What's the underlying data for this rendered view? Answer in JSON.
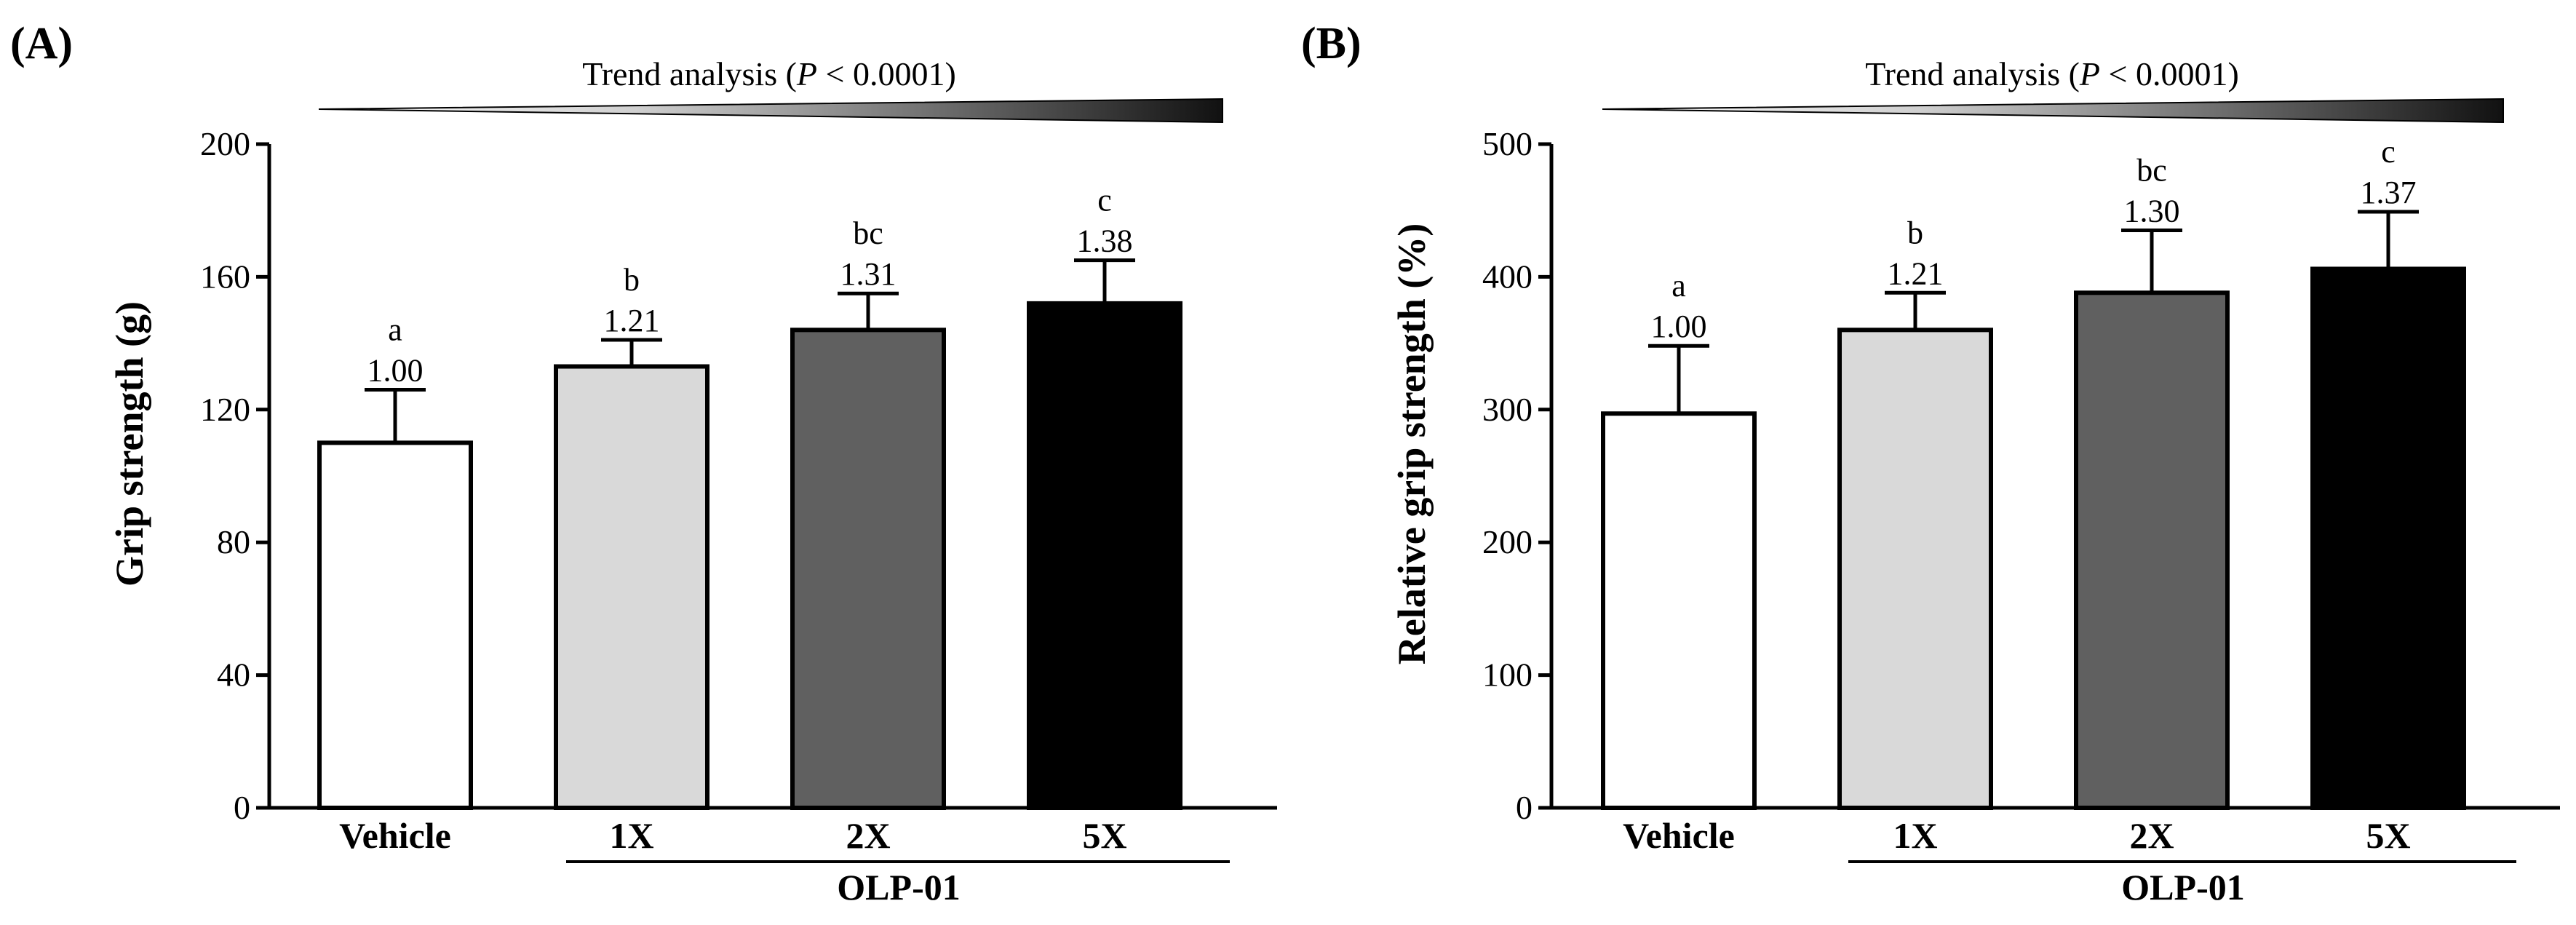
{
  "chart_data": [
    {
      "type": "bar",
      "panel_label": "(A)",
      "trend_prefix": "Trend analysis (",
      "trend_p": "P",
      "trend_suffix": " < 0.0001)",
      "ylabel": "Grip strength (g)",
      "xlabel": "",
      "ylim": [
        0,
        200
      ],
      "yticks": [
        "0",
        "40",
        "80",
        "120",
        "160",
        "200"
      ],
      "categories": [
        "Vehicle",
        "1X",
        "2X",
        "5X"
      ],
      "values": [
        110,
        133,
        144,
        152
      ],
      "errors": [
        16,
        8,
        11,
        13
      ],
      "fill_colors": [
        "#ffffff",
        "#d9d9d9",
        "#606060",
        "#000000"
      ],
      "significance_letters": [
        "a",
        "b",
        "bc",
        "c"
      ],
      "fold_change": [
        "1.00",
        "1.21",
        "1.31",
        "1.38"
      ],
      "group_label": "OLP-01"
    },
    {
      "type": "bar",
      "panel_label": "(B)",
      "trend_prefix": "Trend analysis (",
      "trend_p": "P",
      "trend_suffix": " < 0.0001)",
      "ylabel": "Relative grip strength (%)",
      "xlabel": "",
      "ylim": [
        0,
        500
      ],
      "yticks": [
        "0",
        "100",
        "200",
        "300",
        "400",
        "500"
      ],
      "categories": [
        "Vehicle",
        "1X",
        "2X",
        "5X"
      ],
      "values": [
        297,
        360,
        388,
        406
      ],
      "errors": [
        51,
        28,
        47,
        43
      ],
      "fill_colors": [
        "#ffffff",
        "#d9d9d9",
        "#606060",
        "#000000"
      ],
      "significance_letters": [
        "a",
        "b",
        "bc",
        "c"
      ],
      "fold_change": [
        "1.00",
        "1.21",
        "1.30",
        "1.37"
      ],
      "group_label": "OLP-01"
    }
  ]
}
